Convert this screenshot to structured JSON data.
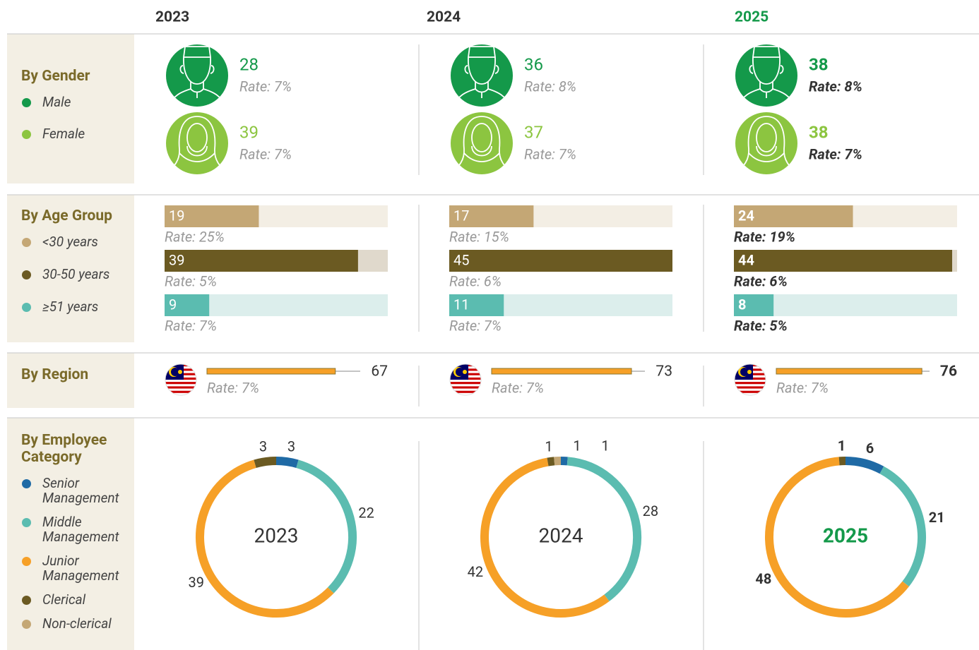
{
  "years": [
    "2023",
    "2024",
    "2025"
  ],
  "highlight": [
    false,
    false,
    true
  ],
  "gender": {
    "title": "By Gender",
    "groups": [
      {
        "name": "Male",
        "color": "#14994a",
        "values": [
          28,
          36,
          38
        ],
        "rates": [
          "Rate: 7%",
          "Rate: 8%",
          "Rate: 8%"
        ]
      },
      {
        "name": "Female",
        "color": "#8cc540",
        "values": [
          39,
          37,
          38
        ],
        "rates": [
          "Rate: 7%",
          "Rate: 7%",
          "Rate: 7%"
        ]
      }
    ]
  },
  "age": {
    "title": "By Age Group",
    "xlim": [
      0,
      45
    ],
    "groups": [
      {
        "name": "<30 years",
        "color": "#c4a775",
        "track": "#f3eee4",
        "values": [
          19,
          17,
          24
        ],
        "rates": [
          "Rate: 25%",
          "Rate: 15%",
          "Rate: 19%"
        ]
      },
      {
        "name": "30-50 years",
        "color": "#6b5a22",
        "track": "#e0d9cc",
        "values": [
          39,
          45,
          44
        ],
        "rates": [
          "Rate: 5%",
          "Rate: 6%",
          "Rate: 6%"
        ]
      },
      {
        "name": "≥51 years",
        "color": "#5bbcb0",
        "track": "#dceeec",
        "values": [
          9,
          11,
          8
        ],
        "rates": [
          "Rate: 7%",
          "Rate: 7%",
          "Rate: 5%"
        ]
      }
    ]
  },
  "region": {
    "title": "By Region",
    "xlim": [
      0,
      80
    ],
    "color": "#f6a027",
    "values": [
      67,
      73,
      76
    ],
    "rates": [
      "Rate: 7%",
      "Rate: 7%",
      "Rate: 7%"
    ]
  },
  "category": {
    "title": "By Employee Category",
    "type": "donut",
    "series": [
      {
        "name": "Senior Management",
        "color": "#1f6aa5",
        "values": [
          3,
          1,
          6
        ]
      },
      {
        "name": "Middle Management",
        "color": "#5bbcb0",
        "values": [
          22,
          28,
          21
        ]
      },
      {
        "name": "Junior Management",
        "color": "#f6a027",
        "values": [
          39,
          42,
          48
        ]
      },
      {
        "name": "Clerical",
        "color": "#6b5a22",
        "values": [
          3,
          1,
          1
        ]
      },
      {
        "name": "Non-clerical",
        "color": "#c4a775",
        "values": [
          null,
          1,
          null
        ]
      }
    ]
  }
}
